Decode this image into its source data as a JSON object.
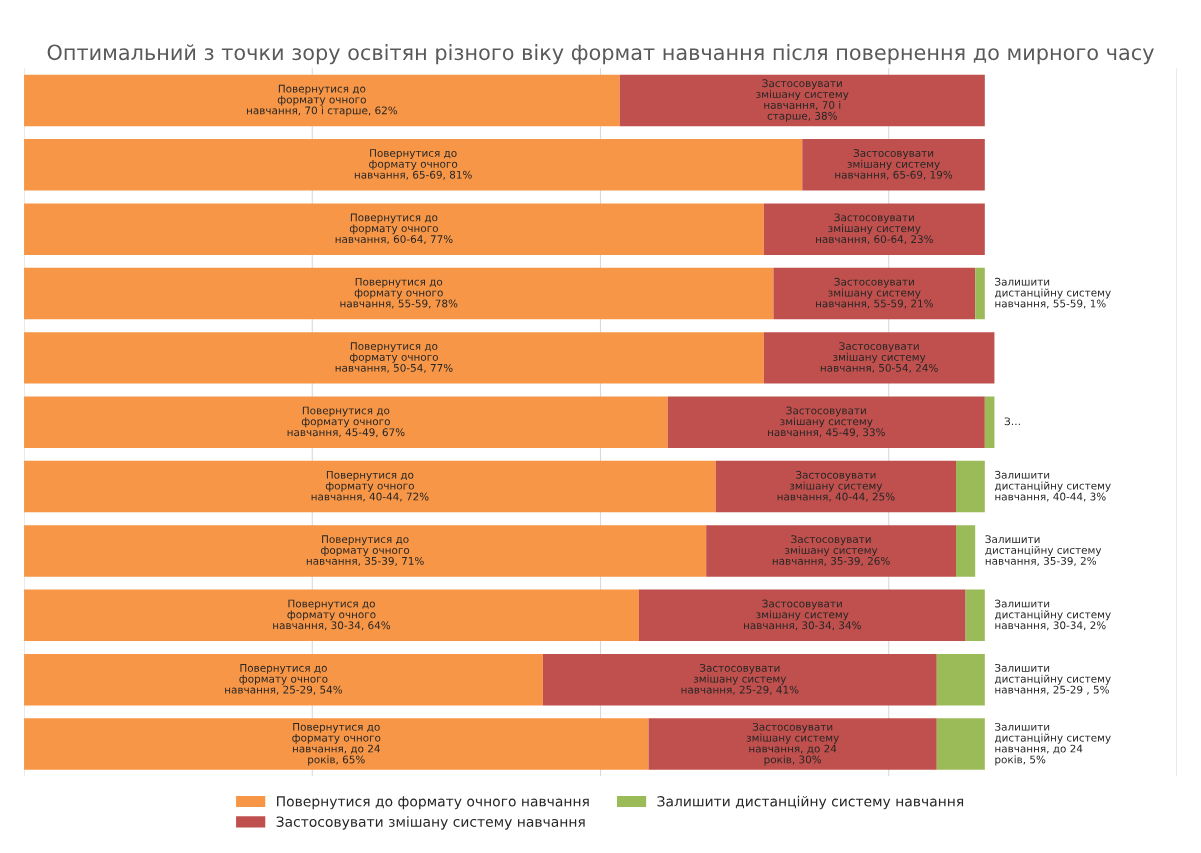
{
  "chart_data": {
    "type": "bar",
    "orientation": "horizontal",
    "stacked": true,
    "title": "Оптимальний з точки зору освітян різного віку формат навчання після повернення до мирного часу",
    "categories": [
      null,
      null,
      null,
      null,
      null,
      null,
      null,
      null,
      null,
      null,
      null
    ],
    "xlim": [
      0,
      120
    ],
    "xticks": [
      {
        "value": 0,
        "label": null
      },
      {
        "value": 30,
        "label": null
      },
      {
        "value": 60,
        "label": null
      },
      {
        "value": 90,
        "label": null
      },
      {
        "value": 120,
        "label": null
      }
    ],
    "grid": "x",
    "legend": "bottom",
    "series": [
      {
        "name": "Повернутися до формату очного навчання",
        "color": "#f79646",
        "values": [
          62,
          81,
          77,
          78,
          77,
          67,
          72,
          71,
          64,
          54,
          65
        ],
        "value_labels": [
          "Повернутися до\nформату очного\nнавчання, 70 і старше, 62%",
          "Повернутися до\nформату очного\nнавчання, 65-69, 81%",
          "Повернутися до\nформату очного\nнавчання, 60-64, 77%",
          "Повернутися до\nформату очного\nнавчання, 55-59, 78%",
          "Повернутися до\nформату очного\nнавчання, 50-54, 77%",
          "Повернутися до\nформату очного\nнавчання, 45-49, 67%",
          "Повернутися до\nформату очного\nнавчання, 40-44, 72%",
          "Повернутися до\nформату очного\nнавчання, 35-39, 71%",
          "Повернутися до\nформату очного\nнавчання, 30-34, 64%",
          "Повернутися до\nформату очного\nнавчання, 25-29, 54%",
          "Повернутися до\nформату очного\nнавчання, до 24\nроків, 65%"
        ]
      },
      {
        "name": "Застосовувати змішану систему навчання",
        "color": "#c0504d",
        "values": [
          38,
          19,
          23,
          21,
          24,
          33,
          25,
          26,
          34,
          41,
          30
        ],
        "value_labels": [
          "Застосовувати\nзмішану систему\nнавчання, 70 і\nстарше, 38%",
          "Застосовувати\nзмішану систему\nнавчання, 65-69, 19%",
          "Застосовувати\nзмішану систему\nнавчання, 60-64, 23%",
          "Застосовувати\nзмішану систему\nнавчання, 55-59, 21%",
          "Застосовувати\nзмішану систему\nнавчання, 50-54, 24%",
          "Застосовувати\nзмішану систему\nнавчання, 45-49, 33%",
          "Застосовувати\nзмішану систему\nнавчання, 40-44, 25%",
          "Застосовувати\nзмішану систему\nнавчання, 35-39, 26%",
          "Застосовувати\nзмішану систему\nнавчання, 30-34, 34%",
          "Застосовувати\nзмішану систему\nнавчання, 25-29, 41%",
          "Застосовувати\nзмішану систему\nнавчання, до 24\nроків, 30%"
        ]
      },
      {
        "name": "Залишити дистанційну систему навчання",
        "color": "#9bbb59",
        "values": [
          null,
          null,
          null,
          1,
          null,
          1,
          3,
          2,
          2,
          5,
          5
        ],
        "value_labels": [
          null,
          null,
          null,
          "Залишити\nдистанційну систему\nнавчання, 55-59, 1%",
          null,
          "З…",
          "Залишити\nдистанційну систему\nнавчання, 40-44, 3%",
          "Залишити\nдистанційну систему\nнавчання, 35-39, 2%",
          "Залишити\nдистанційну систему\nнавчання, 30-34, 2%",
          "Залишити\nдистанційну систему\nнавчання, 25-29 , 5%",
          "Залишити\nдистанційну систему\nнавчання, до 24\nроків, 5%"
        ]
      }
    ]
  }
}
